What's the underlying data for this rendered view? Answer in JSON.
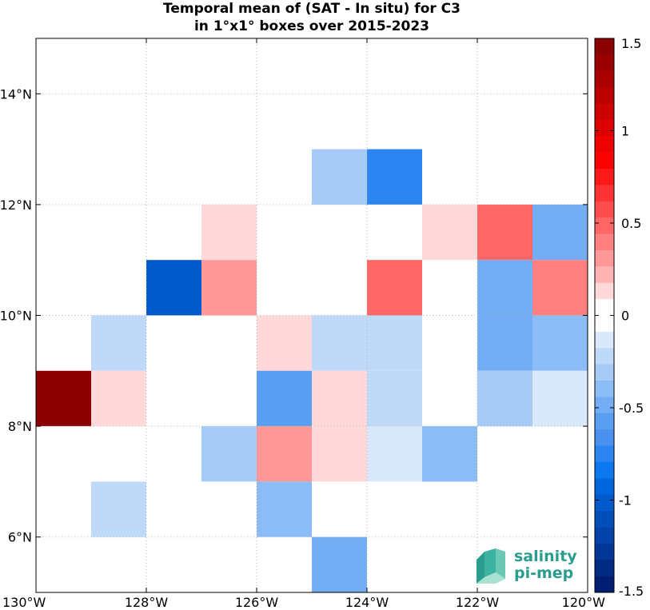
{
  "chart_data": {
    "type": "heatmap",
    "title_lines": [
      "Temporal mean of (SAT - In situ) for C3",
      "in 1°x1° boxes over 2015-2023"
    ],
    "x_range": [
      -130,
      -120
    ],
    "y_range": [
      5,
      15
    ],
    "x_ticks": [
      {
        "value": -130,
        "label": "130°W"
      },
      {
        "value": -128,
        "label": "128°W"
      },
      {
        "value": -126,
        "label": "126°W"
      },
      {
        "value": -124,
        "label": "124°W"
      },
      {
        "value": -122,
        "label": "122°W"
      },
      {
        "value": -120,
        "label": "120°W"
      }
    ],
    "y_ticks": [
      {
        "value": 6,
        "label": "6°N"
      },
      {
        "value": 8,
        "label": "8°N"
      },
      {
        "value": 10,
        "label": "10°N"
      },
      {
        "value": 12,
        "label": "12°N"
      },
      {
        "value": 14,
        "label": "14°N"
      }
    ],
    "grid": true,
    "cells": [
      {
        "lon": -125,
        "lat": 12,
        "value": -0.3
      },
      {
        "lon": -124,
        "lat": 12,
        "value": -0.75
      },
      {
        "lon": -127,
        "lat": 11,
        "value": 0.15
      },
      {
        "lon": -123,
        "lat": 11,
        "value": 0.15
      },
      {
        "lon": -122,
        "lat": 11,
        "value": 0.5
      },
      {
        "lon": -121,
        "lat": 11,
        "value": -0.5
      },
      {
        "lon": -128,
        "lat": 10,
        "value": -1.0
      },
      {
        "lon": -127,
        "lat": 10,
        "value": 0.3
      },
      {
        "lon": -124,
        "lat": 10,
        "value": 0.5
      },
      {
        "lon": -122,
        "lat": 10,
        "value": -0.5
      },
      {
        "lon": -121,
        "lat": 10,
        "value": 0.4
      },
      {
        "lon": -129,
        "lat": 9,
        "value": -0.2
      },
      {
        "lon": -126,
        "lat": 9,
        "value": 0.15
      },
      {
        "lon": -125,
        "lat": 9,
        "value": -0.25
      },
      {
        "lon": -124,
        "lat": 9,
        "value": -0.25
      },
      {
        "lon": -122,
        "lat": 9,
        "value": -0.5
      },
      {
        "lon": -121,
        "lat": 9,
        "value": -0.4
      },
      {
        "lon": -130,
        "lat": 8,
        "value": 1.5
      },
      {
        "lon": -129,
        "lat": 8,
        "value": 0.15
      },
      {
        "lon": -126,
        "lat": 8,
        "value": -0.55
      },
      {
        "lon": -125,
        "lat": 8,
        "value": 0.15
      },
      {
        "lon": -124,
        "lat": 8,
        "value": -0.25
      },
      {
        "lon": -122,
        "lat": 8,
        "value": -0.35
      },
      {
        "lon": -121,
        "lat": 8,
        "value": -0.15
      },
      {
        "lon": -127,
        "lat": 7,
        "value": -0.35
      },
      {
        "lon": -126,
        "lat": 7,
        "value": 0.3
      },
      {
        "lon": -125,
        "lat": 7,
        "value": 0.15
      },
      {
        "lon": -124,
        "lat": 7,
        "value": -0.15
      },
      {
        "lon": -123,
        "lat": 7,
        "value": -0.4
      },
      {
        "lon": -129,
        "lat": 6,
        "value": -0.2
      },
      {
        "lon": -126,
        "lat": 6,
        "value": -0.4
      },
      {
        "lon": -125,
        "lat": 5,
        "value": -0.5
      }
    ],
    "colorbar": {
      "range": [
        -1.5,
        1.5
      ],
      "ticks": [
        {
          "value": 1.5,
          "label": "1.5"
        },
        {
          "value": 1,
          "label": "1"
        },
        {
          "value": 0.5,
          "label": "0.5"
        },
        {
          "value": 0,
          "label": "0"
        },
        {
          "value": -0.5,
          "label": "-0.5"
        },
        {
          "value": -1,
          "label": "-1"
        },
        {
          "value": -1.5,
          "label": "-1.5"
        }
      ],
      "colors_top_to_bottom": [
        "#8b0000",
        "#9a0000",
        "#aa0000",
        "#bb0000",
        "#cc0000",
        "#dd0000",
        "#ee0000",
        "#ff0000",
        "#ff1a1a",
        "#ff3333",
        "#ff4d4d",
        "#ff6666",
        "#ff8080",
        "#ff9999",
        "#ffb3b3",
        "#ffd9d9",
        "#ffffff",
        "#ffffff",
        "#d9e9fb",
        "#bfdaf9",
        "#a6cbf7",
        "#8cbcf5",
        "#73adf3",
        "#599ef1",
        "#4a90ee",
        "#2b84ef",
        "#0b78f0",
        "#0066dd",
        "#005acb",
        "#004eb9",
        "#0042a7",
        "#003695",
        "#002a83",
        "#001e71"
      ]
    }
  },
  "logo": {
    "line1": "salinity",
    "line2": "pi-mep"
  }
}
